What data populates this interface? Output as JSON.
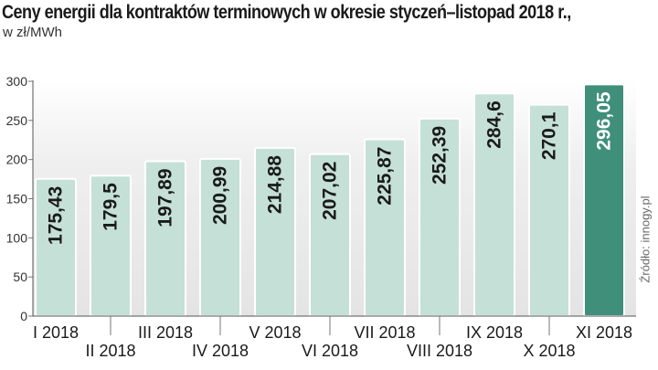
{
  "title": "Ceny energii dla kontraktów terminowych w okresie styczeń–listopad 2018 r.,",
  "subtitle": "w zł/MWh",
  "source": "Źródło: innogy.pl",
  "chart_data": {
    "type": "bar",
    "title": "Ceny energii dla kontraktów terminowych w okresie styczeń–listopad 2018 r.,",
    "ylabel": "w zł/MWh",
    "xlabel": "",
    "ylim": [
      0,
      300
    ],
    "yticks": [
      0,
      50,
      100,
      150,
      200,
      250,
      300
    ],
    "grid": false,
    "categories": [
      "I 2018",
      "II 2018",
      "III 2018",
      "IV 2018",
      "V 2018",
      "VI 2018",
      "VII 2018",
      "VIII 2018",
      "IX 2018",
      "X 2018",
      "XI 2018"
    ],
    "values": [
      175.43,
      179.5,
      197.89,
      200.99,
      214.88,
      207.02,
      225.87,
      252.39,
      284.6,
      270.1,
      296.05
    ],
    "value_labels": [
      "175,43",
      "179,5",
      "197,89",
      "200,99",
      "214,88",
      "207,02",
      "225,87",
      "252,39",
      "284,6",
      "270,1",
      "296,05"
    ],
    "colors": {
      "bar": "#c5e0d7",
      "bar_highlight": "#3f8f7b",
      "label": "#1a1a1a",
      "label_highlight": "#ffffff",
      "plot_background": "#ececec"
    },
    "highlight_index": 10
  }
}
